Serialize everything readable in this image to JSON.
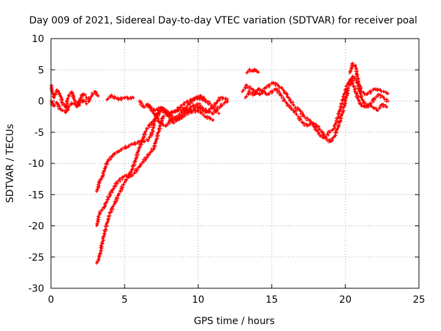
{
  "chart_data": {
    "type": "scatter",
    "title": "Day 009 of 2021, Sidereal Day-to-day VTEC variation (SDTVAR) for receiver poal",
    "xlabel": "GPS time / hours",
    "ylabel": "SDTVAR / TECUs",
    "xlim": [
      0,
      25
    ],
    "ylim": [
      -30,
      10
    ],
    "xticks": [
      "0",
      "5",
      "10",
      "15",
      "20",
      "25"
    ],
    "yticks": [
      "10",
      "5",
      "0",
      "-5",
      "-10",
      "-15",
      "-20",
      "-25",
      "-30"
    ],
    "grid": true,
    "marker": "+",
    "series": [
      {
        "name": "SDTVAR",
        "color": "#ff0000",
        "tracks": [
          {
            "x": [
              0.0,
              0.2,
              0.4,
              0.6,
              0.8,
              1.0,
              1.2,
              1.4,
              1.6,
              1.8,
              2.0,
              2.2,
              2.4,
              2.6,
              2.8,
              3.0,
              3.2
            ],
            "y": [
              2.5,
              0.5,
              1.8,
              1.2,
              -0.5,
              -1.0,
              0.8,
              1.5,
              0.2,
              -0.8,
              0.5,
              1.2,
              0.6,
              0.2,
              1.0,
              1.5,
              0.8
            ]
          },
          {
            "x": [
              0.0,
              0.2,
              0.4,
              0.6,
              0.8,
              1.0,
              1.2,
              1.4,
              1.6,
              1.8,
              2.0,
              2.2,
              2.4,
              2.6
            ],
            "y": [
              0.0,
              -0.8,
              -0.2,
              -1.2,
              -1.5,
              -1.8,
              -1.0,
              -0.3,
              -0.5,
              -0.9,
              -0.2,
              0.2,
              -0.4,
              0.0
            ]
          },
          {
            "x": [
              3.8,
              4.1,
              4.4,
              4.7,
              5.0,
              5.3,
              5.6
            ],
            "y": [
              0.2,
              0.9,
              0.5,
              0.3,
              0.6,
              0.4,
              0.5
            ]
          },
          {
            "x": [
              3.1,
              3.3,
              3.5,
              3.7,
              3.9,
              4.1,
              4.3,
              4.6,
              5.0,
              5.5,
              6.0,
              6.3,
              6.6,
              6.9,
              7.0,
              7.2,
              7.5,
              7.8,
              8.0,
              8.3,
              8.6,
              9.0,
              9.5,
              10.0,
              10.5,
              11.0,
              11.5,
              12.0
            ],
            "y": [
              -14.5,
              -13.0,
              -12.0,
              -10.5,
              -9.5,
              -9.0,
              -8.5,
              -8.0,
              -7.5,
              -7.0,
              -6.5,
              -6.5,
              -6.2,
              -5.0,
              -3.5,
              -2.0,
              -1.0,
              -1.5,
              -2.5,
              -3.5,
              -3.0,
              -2.0,
              -1.0,
              -0.5,
              -1.5,
              -2.0,
              -0.8,
              0.0
            ]
          },
          {
            "x": [
              3.1,
              3.3,
              3.6,
              4.0,
              4.5,
              5.0,
              5.5,
              6.0,
              6.5,
              7.0,
              7.3,
              7.6,
              8.0,
              8.3,
              8.7,
              9.0,
              9.5,
              10.0,
              10.5,
              11.0
            ],
            "y": [
              -20.0,
              -18.0,
              -17.0,
              -15.0,
              -13.0,
              -12.0,
              -12.0,
              -10.5,
              -9.0,
              -7.5,
              -5.0,
              -2.5,
              -2.0,
              -1.8,
              -1.5,
              -1.2,
              -1.8,
              -1.5,
              -2.5,
              -3.0
            ]
          },
          {
            "x": [
              3.1,
              3.3,
              3.5,
              3.7,
              4.0,
              4.3,
              4.6,
              5.0,
              5.3,
              5.6,
              6.0,
              6.5,
              7.0,
              7.5,
              8.0,
              8.5,
              9.0,
              9.5,
              10.0,
              10.5
            ],
            "y": [
              -26.0,
              -25.0,
              -22.5,
              -20.5,
              -18.0,
              -16.5,
              -15.0,
              -13.0,
              -12.0,
              -10.5,
              -7.5,
              -4.5,
              -3.0,
              -1.5,
              -2.0,
              -1.5,
              -0.5,
              0.2,
              0.5,
              0.0
            ]
          },
          {
            "x": [
              6.0,
              6.3,
              6.6,
              7.0,
              7.4,
              7.8,
              8.2,
              8.6,
              9.0,
              9.4,
              9.8,
              10.2,
              10.6,
              11.0,
              11.4
            ],
            "y": [
              0.0,
              -1.0,
              -0.5,
              -2.0,
              -3.5,
              -4.0,
              -3.0,
              -2.5,
              -1.5,
              -0.5,
              0.5,
              0.8,
              0.0,
              -1.0,
              -2.0
            ]
          },
          {
            "x": [
              6.5,
              7.0,
              7.5,
              8.0,
              8.5,
              9.0,
              9.5,
              10.0,
              10.5,
              11.0,
              11.5,
              12.0
            ],
            "y": [
              -0.5,
              -1.5,
              -1.0,
              -2.0,
              -3.0,
              -2.5,
              -1.5,
              -1.0,
              -1.8,
              -1.0,
              0.5,
              0.3
            ]
          },
          {
            "x": [
              13.0,
              13.3,
              13.6,
              13.9,
              14.2,
              14.5,
              14.8,
              15.1,
              15.4,
              15.7,
              16.0,
              16.3,
              16.6,
              16.9,
              17.2,
              17.5,
              17.8,
              18.1,
              18.4,
              18.7,
              19.0,
              19.3,
              19.6,
              19.9,
              20.2,
              20.5,
              20.8,
              21.1,
              21.4,
              21.7,
              22.0,
              22.3,
              22.6,
              22.9
            ],
            "y": [
              1.5,
              2.5,
              2.0,
              1.5,
              1.0,
              2.0,
              2.5,
              3.0,
              2.5,
              2.0,
              1.0,
              0.0,
              -1.0,
              -1.5,
              -2.5,
              -3.0,
              -3.5,
              -4.0,
              -5.0,
              -6.0,
              -6.5,
              -5.5,
              -3.5,
              -1.0,
              2.0,
              4.0,
              3.0,
              0.5,
              -1.0,
              -0.5,
              0.5,
              1.0,
              0.5,
              0.0
            ]
          },
          {
            "x": [
              13.2,
              13.5,
              13.8,
              14.1,
              14.4,
              14.7,
              15.0,
              15.3,
              15.6,
              15.9,
              16.2,
              16.5,
              16.8,
              17.1,
              17.4,
              17.7,
              18.0,
              18.3,
              18.6,
              18.9,
              19.2,
              19.5,
              19.8,
              20.1,
              20.4,
              20.7,
              21.0,
              21.3,
              21.6,
              21.9,
              22.2,
              22.5,
              22.8
            ],
            "y": [
              0.5,
              1.5,
              1.0,
              2.0,
              1.5,
              1.0,
              1.5,
              2.0,
              1.0,
              0.0,
              -1.0,
              -1.5,
              -2.5,
              -3.5,
              -4.0,
              -3.5,
              -4.5,
              -5.5,
              -6.0,
              -5.0,
              -4.5,
              -2.5,
              0.0,
              2.5,
              3.5,
              1.5,
              -0.5,
              -1.0,
              -0.5,
              -1.0,
              -1.5,
              -0.5,
              -1.0
            ]
          },
          {
            "x": [
              13.3,
              13.5,
              13.7,
              13.9,
              14.1
            ],
            "y": [
              4.5,
              5.0,
              4.8,
              5.0,
              4.6
            ]
          },
          {
            "x": [
              20.3,
              20.5,
              20.7,
              20.9,
              21.1,
              21.4,
              21.7,
              22.0,
              22.3,
              22.6,
              22.9
            ],
            "y": [
              4.5,
              6.0,
              5.5,
              3.0,
              1.5,
              1.0,
              1.5,
              2.0,
              1.8,
              1.5,
              1.2
            ]
          }
        ]
      }
    ]
  }
}
